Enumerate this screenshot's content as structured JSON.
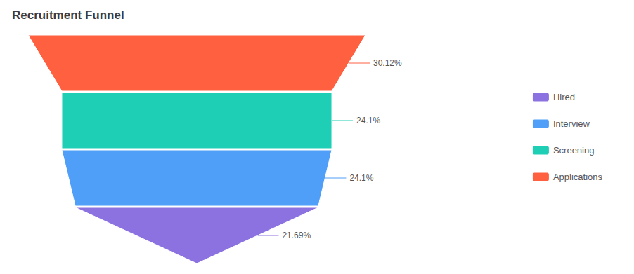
{
  "chart_data": {
    "type": "funnel",
    "title": "Recruitment Funnel",
    "categories": [
      "Applications",
      "Screening",
      "Interview",
      "Hired"
    ],
    "values": [
      30.12,
      24.1,
      24.1,
      21.69
    ],
    "value_labels": [
      "30.12%",
      "24.1%",
      "24.1%",
      "21.69%"
    ],
    "colors": [
      "#FF6040",
      "#1ECFB5",
      "#4F9EF8",
      "#8B72E0"
    ],
    "data_labels": true,
    "legend": "right"
  }
}
